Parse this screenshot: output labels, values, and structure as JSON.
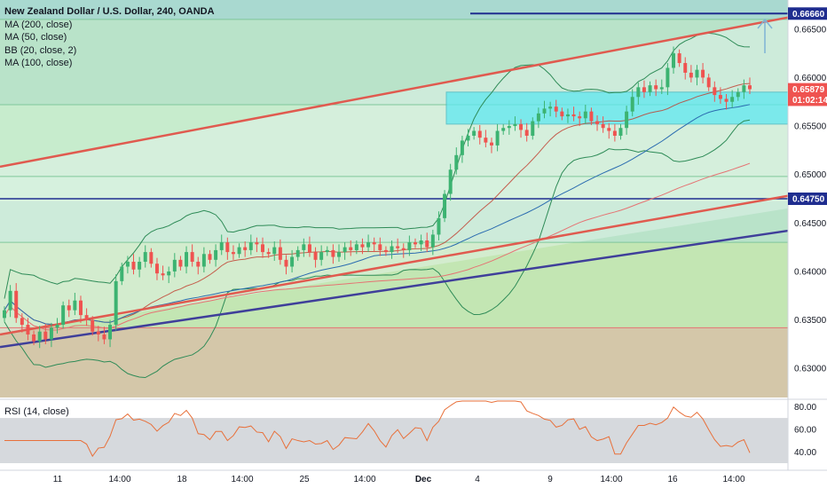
{
  "legend": {
    "title": "New Zealand Dollar / U.S. Dollar, 240, OANDA",
    "items": [
      "MA (200, close)",
      "MA (50, close)",
      "BB (20, close, 2)",
      "MA (100, close)"
    ]
  },
  "rsi_label": "RSI (14, close)",
  "colors": {
    "up": "#3cb371",
    "down": "#ef5350",
    "bb": "#2e8b57",
    "ma200": "#e57373",
    "ma50": "#c0392b",
    "ma100": "#2b6cb0",
    "trend_red": "#e05a4f",
    "trend_navy": "#3f3f9a",
    "level_line": "#1f2d8f",
    "zone_cyan": "#5ee7f0",
    "rsi_line": "#e8703a"
  },
  "price_badges": [
    {
      "text": "0.66660",
      "bg": "#1f2d8f",
      "fg": "#ffffff"
    },
    {
      "text": "0.65879",
      "bg": "#ef5350",
      "fg": "#ffffff"
    },
    {
      "text": "01:02:14",
      "bg": "#ef5350",
      "fg": "#ffffff"
    },
    {
      "text": "0.64750",
      "bg": "#1f2d8f",
      "fg": "#ffffff"
    }
  ],
  "chart_data": {
    "type": "candlestick",
    "symbol": "NZDUSD",
    "timeframe": "240",
    "source": "OANDA",
    "ylim": [
      0.627,
      0.668
    ],
    "y_ticks": [
      "0.66500",
      "0.66000",
      "0.65500",
      "0.65000",
      "0.64500",
      "0.64000",
      "0.63500",
      "0.63000"
    ],
    "x_ticks": [
      "11",
      "14:00",
      "18",
      "14:00",
      "25",
      "14:00",
      "Dec",
      "4",
      "9",
      "14:00",
      "16",
      "14:00"
    ],
    "key_levels": [
      {
        "label": "0.66660",
        "value": 0.6666
      },
      {
        "label": "0.64750",
        "value": 0.6475
      }
    ],
    "current_price": 0.65879,
    "countdown": "01:02:14",
    "close_series": [
      0.636,
      0.638,
      0.6352,
      0.6345,
      0.6335,
      0.6328,
      0.6338,
      0.633,
      0.6342,
      0.6345,
      0.6365,
      0.636,
      0.637,
      0.6355,
      0.635,
      0.6338,
      0.6335,
      0.633,
      0.6345,
      0.639,
      0.6405,
      0.641,
      0.6402,
      0.641,
      0.642,
      0.6408,
      0.6398,
      0.6396,
      0.64,
      0.6412,
      0.6405,
      0.642,
      0.641,
      0.6405,
      0.6418,
      0.6412,
      0.6422,
      0.643,
      0.642,
      0.6418,
      0.6425,
      0.6422,
      0.643,
      0.6428,
      0.642,
      0.6418,
      0.6425,
      0.6412,
      0.6405,
      0.6415,
      0.6422,
      0.6428,
      0.642,
      0.6412,
      0.642,
      0.6422,
      0.6415,
      0.642,
      0.6425,
      0.6422,
      0.6428,
      0.6425,
      0.643,
      0.6428,
      0.6422,
      0.642,
      0.6426,
      0.6424,
      0.6422,
      0.643,
      0.6428,
      0.6432,
      0.6425,
      0.6438,
      0.6455,
      0.648,
      0.6505,
      0.652,
      0.6535,
      0.654,
      0.6545,
      0.6538,
      0.6533,
      0.653,
      0.6545,
      0.6548,
      0.655,
      0.6552,
      0.6546,
      0.654,
      0.6555,
      0.6563,
      0.6568,
      0.657,
      0.6565,
      0.656,
      0.6562,
      0.656,
      0.6558,
      0.6565,
      0.6555,
      0.6552,
      0.6548,
      0.6545,
      0.654,
      0.6548,
      0.6565,
      0.658,
      0.659,
      0.6585,
      0.6592,
      0.6588,
      0.659,
      0.661,
      0.6625,
      0.6615,
      0.6605,
      0.66,
      0.6608,
      0.66,
      0.659,
      0.6582,
      0.6578,
      0.6575,
      0.658,
      0.6585,
      0.6592,
      0.6588
    ],
    "overlays": [
      "MA (200, close)",
      "MA (50, close)",
      "BB (20, close, 2)",
      "MA (100, close)"
    ],
    "rsi": {
      "label": "RSI (14, close)",
      "ylim": [
        30,
        85
      ],
      "y_ticks": [
        "80.00",
        "60.00",
        "40.00"
      ],
      "band": [
        30,
        70
      ]
    }
  }
}
